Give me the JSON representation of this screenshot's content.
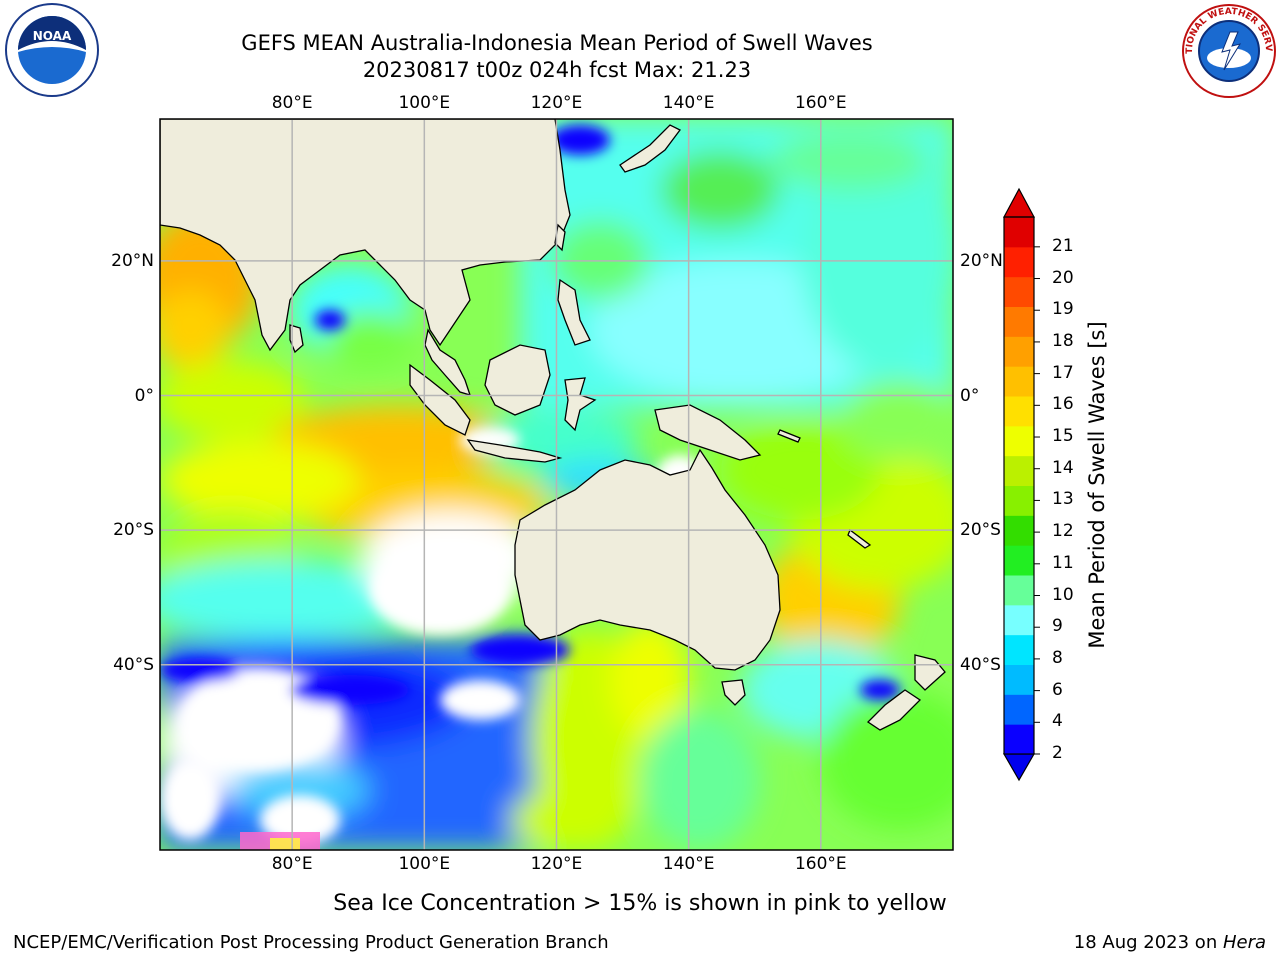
{
  "header": {
    "title_line1": "GEFS MEAN Australia-Indonesia Mean Period of Swell Waves",
    "title_line2": "20230817 t00z 024h fcst   Max: 21.23"
  },
  "logos": {
    "left": "noaa-logo",
    "right": "nws-logo",
    "left_text": "NOAA",
    "nws_ring_text": "NATIONAL WEATHER SERVICE"
  },
  "map": {
    "lon_ticks": [
      "80°E",
      "100°E",
      "120°E",
      "140°E",
      "160°E"
    ],
    "lat_ticks_left": [
      "20°N",
      "0°",
      "20°S",
      "40°S"
    ],
    "lat_ticks_right": [
      "20°N",
      "0°",
      "20°S",
      "40°S"
    ],
    "lon_values": [
      80,
      100,
      120,
      140,
      160
    ],
    "lat_values": [
      20,
      0,
      -20,
      -40
    ],
    "colors": {
      "land": "#efeddc",
      "grid": "#b5b5b5",
      "ice": "#ff66cc"
    }
  },
  "colorbar": {
    "title": "Mean Period of Swell Waves [s]",
    "labels": [
      "2",
      "4",
      "6",
      "8",
      "9",
      "10",
      "11",
      "12",
      "13",
      "14",
      "15",
      "16",
      "17",
      "18",
      "19",
      "20",
      "21"
    ],
    "colors": [
      "#0a00ff",
      "#0066ff",
      "#00bbff",
      "#00e5ff",
      "#77ffff",
      "#66ff99",
      "#22ee22",
      "#33dd00",
      "#88f000",
      "#bbf000",
      "#eeff00",
      "#ffe000",
      "#ffc000",
      "#ffa000",
      "#ff7a00",
      "#ff4a00",
      "#ff2000",
      "#e00000"
    ],
    "over_color": "#e00000",
    "under_color": "#0000ee"
  },
  "caption": "Sea Ice Concentration > 15% is shown in pink to yellow",
  "footer": {
    "left": "NCEP/EMC/Verification Post Processing Product Generation Branch",
    "right_date": "18 Aug 2023 on ",
    "right_host": "Hera"
  }
}
